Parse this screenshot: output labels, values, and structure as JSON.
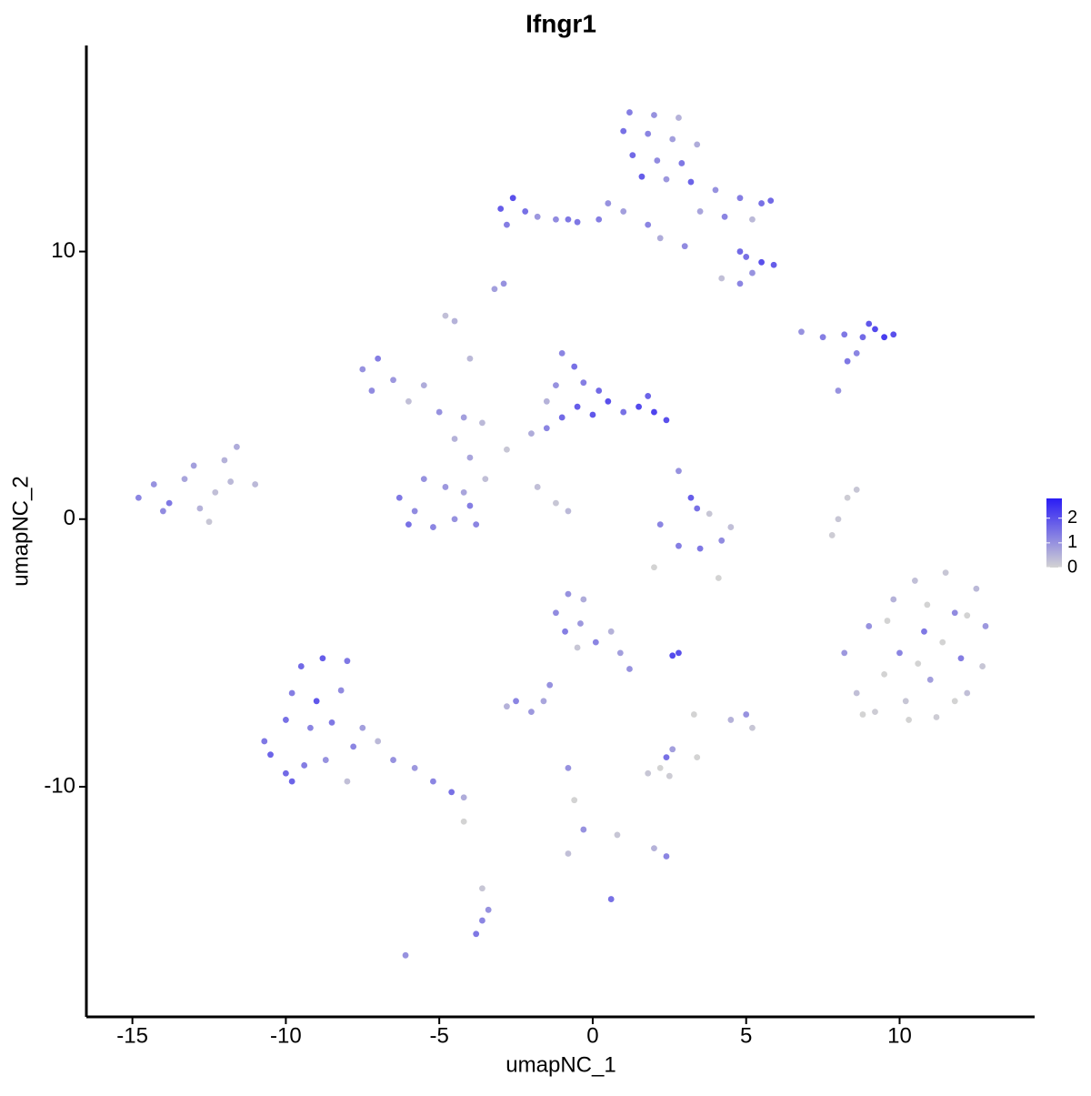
{
  "chart_data": {
    "type": "scatter",
    "title": "Ifngr1",
    "x_label": "umapNC_1",
    "y_label": "umapNC_2",
    "xlim": [
      -16.5,
      14.4
    ],
    "ylim": [
      -18.6,
      17.7
    ],
    "xticks": [
      -15,
      -10,
      -5,
      0,
      5,
      10
    ],
    "yticks": [
      -10,
      0,
      10
    ],
    "colorbar": {
      "lim": [
        0,
        2.8
      ],
      "ticks": [
        0,
        1,
        2
      ],
      "low": "#d3d3d3",
      "high": "#2a1cf5"
    },
    "x": [
      1.2,
      2.0,
      2.8,
      1.0,
      1.8,
      2.6,
      3.4,
      1.3,
      2.1,
      2.9,
      1.6,
      2.4,
      3.2,
      4.0,
      4.8,
      5.5,
      3.5,
      4.3,
      5.2,
      5.8,
      4.8,
      5.5,
      5.9,
      5.2,
      4.8,
      4.2,
      5.0,
      0.5,
      0.2,
      -0.5,
      1.0,
      1.8,
      2.2,
      3.0,
      -3.0,
      -2.6,
      -2.2,
      -2.8,
      -1.8,
      -1.2,
      -0.8,
      -3.2,
      -4.5,
      -2.9,
      6.8,
      7.5,
      8.2,
      8.8,
      9.2,
      9.5,
      9.8,
      9.0,
      8.6,
      8.3,
      8.0,
      -7.5,
      -7.0,
      -6.5,
      -7.2,
      -6.0,
      -5.5,
      -5.0,
      -4.2,
      -3.6,
      -4.5,
      -4.0,
      -3.5,
      -2.8,
      -2.0,
      -1.5,
      -1.0,
      -0.5,
      0.0,
      0.5,
      1.0,
      1.5,
      2.0,
      2.4,
      1.8,
      -1.0,
      -0.6,
      -0.3,
      -1.2,
      0.2,
      -6.3,
      -5.8,
      -5.2,
      -4.5,
      -4.0,
      -4.8,
      -5.5,
      -4.2,
      -6.0,
      -3.8,
      -1.8,
      -1.2,
      -0.8,
      -1.5,
      -4.8,
      -4.0,
      2.8,
      3.2,
      3.4,
      2.2,
      2.8,
      3.5,
      4.2,
      4.5,
      3.8,
      8.3,
      8.0,
      7.8,
      8.6,
      -14.8,
      -14.3,
      -13.8,
      -13.3,
      -12.8,
      -13.0,
      -12.3,
      -11.8,
      -14.0,
      -12.5,
      -11.6,
      -12.0,
      -11.0,
      8.2,
      8.6,
      9.0,
      9.2,
      9.8,
      10.0,
      10.2,
      10.5,
      10.8,
      11.0,
      11.2,
      11.5,
      11.8,
      12.0,
      12.2,
      12.5,
      12.8,
      12.7,
      9.5,
      10.6,
      11.4,
      12.2,
      9.6,
      10.9,
      8.8,
      10.3,
      11.8,
      -9.5,
      -8.8,
      -8.0,
      -9.8,
      -9.0,
      -8.2,
      -10.0,
      -9.2,
      -8.5,
      -10.5,
      -10.0,
      -9.4,
      -8.7,
      -7.8,
      -7.0,
      -6.5,
      -5.8,
      -5.2,
      -4.6,
      -4.2,
      -9.8,
      -10.7,
      -7.5,
      -8.0,
      -1.2,
      -0.8,
      -0.3,
      -0.9,
      -0.4,
      0.1,
      0.6,
      0.9,
      1.2,
      -0.5,
      -1.4,
      -1.6,
      -2.5,
      -2.0,
      -2.8,
      2.8,
      2.6,
      1.8,
      2.2,
      2.5,
      2.4,
      2.6,
      -0.8,
      -0.6,
      -0.3,
      0.8,
      2.0,
      2.4,
      4.5,
      5.0,
      5.2,
      3.3,
      3.4,
      -3.6,
      -3.4,
      -3.6,
      -3.8,
      -6.1,
      0.6,
      -0.8,
      -4.2,
      4.1,
      2.0
    ],
    "y": [
      15.2,
      15.1,
      15.0,
      14.5,
      14.4,
      14.2,
      14.0,
      13.6,
      13.4,
      13.3,
      12.8,
      12.7,
      12.6,
      12.3,
      12.0,
      11.8,
      11.5,
      11.3,
      11.2,
      11.9,
      10.0,
      9.6,
      9.5,
      9.2,
      8.8,
      9.0,
      9.8,
      11.8,
      11.2,
      11.1,
      11.5,
      11.0,
      10.5,
      10.2,
      11.6,
      12.0,
      11.5,
      11.0,
      11.3,
      11.2,
      11.2,
      8.6,
      7.4,
      8.8,
      7.0,
      6.8,
      6.9,
      6.8,
      7.1,
      6.8,
      6.9,
      7.3,
      6.2,
      5.9,
      4.8,
      5.6,
      6.0,
      5.2,
      4.8,
      4.4,
      5.0,
      4.0,
      3.8,
      3.6,
      3.0,
      2.3,
      1.5,
      2.6,
      3.2,
      3.4,
      3.8,
      4.2,
      3.9,
      4.4,
      4.0,
      4.2,
      4.0,
      3.7,
      4.6,
      6.2,
      5.7,
      5.1,
      5.0,
      4.8,
      0.8,
      0.3,
      -0.3,
      0.0,
      0.5,
      1.2,
      1.5,
      1.0,
      -0.2,
      -0.2,
      1.2,
      0.6,
      0.3,
      4.4,
      7.6,
      6.0,
      1.8,
      0.8,
      0.4,
      -0.2,
      -1.0,
      -1.1,
      -0.8,
      -0.3,
      0.2,
      0.8,
      0.0,
      -0.6,
      1.1,
      0.8,
      1.3,
      0.6,
      1.5,
      0.4,
      2.0,
      1.0,
      1.4,
      0.3,
      -0.1,
      2.7,
      2.2,
      1.3,
      -5.0,
      -6.5,
      -4.0,
      -7.2,
      -3.0,
      -5.0,
      -6.8,
      -2.3,
      -4.2,
      -6.0,
      -7.4,
      -2.0,
      -3.5,
      -5.2,
      -6.5,
      -2.6,
      -4.0,
      -5.5,
      -5.8,
      -5.4,
      -4.6,
      -3.6,
      -3.8,
      -3.2,
      -7.3,
      -7.5,
      -6.8,
      -5.5,
      -5.2,
      -5.3,
      -6.5,
      -6.8,
      -6.4,
      -7.5,
      -7.8,
      -7.6,
      -8.8,
      -9.5,
      -9.2,
      -9.0,
      -8.5,
      -8.3,
      -9.0,
      -9.3,
      -9.8,
      -10.2,
      -10.4,
      -9.8,
      -8.3,
      -7.8,
      -9.8,
      -3.5,
      -2.8,
      -3.0,
      -4.2,
      -3.9,
      -4.6,
      -4.2,
      -5.0,
      -5.6,
      -4.8,
      -6.2,
      -6.8,
      -6.8,
      -7.2,
      -7.0,
      -5.0,
      -5.1,
      -9.5,
      -9.3,
      -9.6,
      -8.9,
      -8.6,
      -9.3,
      -10.5,
      -11.6,
      -11.8,
      -12.3,
      -12.6,
      -7.5,
      -7.3,
      -7.8,
      -7.3,
      -8.9,
      -13.8,
      -14.6,
      -15.0,
      -15.5,
      -16.3,
      -14.2,
      -12.5,
      -11.3,
      -2.2,
      -1.8
    ],
    "values": [
      1.3,
      1.0,
      0.5,
      1.5,
      1.2,
      0.8,
      0.6,
      1.6,
      1.1,
      1.4,
      1.8,
      0.9,
      1.7,
      1.0,
      1.3,
      1.5,
      0.7,
      1.2,
      0.4,
      1.6,
      1.6,
      2.0,
      1.8,
      1.0,
      1.2,
      0.3,
      1.5,
      1.0,
      1.3,
      1.4,
      0.8,
      1.2,
      0.6,
      1.1,
      1.8,
      2.0,
      1.5,
      1.3,
      0.9,
      1.1,
      1.4,
      0.8,
      0.5,
      1.0,
      1.0,
      1.3,
      1.4,
      1.6,
      2.1,
      2.3,
      2.0,
      1.9,
      1.2,
      1.4,
      1.0,
      1.0,
      1.3,
      0.9,
      1.1,
      0.3,
      0.6,
      1.0,
      0.8,
      0.4,
      0.5,
      0.7,
      0.3,
      0.2,
      0.6,
      1.2,
      1.6,
      1.8,
      1.9,
      2.0,
      1.5,
      2.1,
      2.2,
      2.0,
      1.7,
      1.2,
      1.5,
      1.3,
      1.0,
      1.6,
      1.4,
      1.1,
      1.2,
      1.0,
      1.3,
      0.9,
      1.0,
      0.7,
      1.5,
      1.2,
      0.3,
      0.2,
      0.4,
      0.5,
      0.3,
      0.4,
      1.0,
      1.8,
      1.5,
      1.2,
      1.3,
      1.4,
      1.1,
      0.3,
      0.2,
      0.1,
      0.2,
      0.1,
      0.2,
      1.2,
      1.0,
      1.4,
      0.7,
      0.5,
      0.8,
      0.3,
      0.4,
      1.1,
      0.2,
      0.6,
      0.5,
      0.4,
      0.9,
      0.3,
      1.0,
      0.1,
      0.5,
      1.2,
      0.2,
      0.3,
      1.4,
      0.8,
      0.1,
      0.2,
      1.1,
      1.3,
      0.3,
      0.4,
      0.9,
      0.2,
      0.0,
      0.0,
      0.0,
      0.0,
      0.0,
      0.0,
      0.0,
      0.0,
      0.0,
      1.6,
      1.8,
      1.4,
      1.3,
      1.9,
      1.1,
      1.5,
      1.2,
      1.4,
      1.7,
      1.6,
      1.3,
      1.0,
      1.2,
      0.4,
      1.0,
      0.9,
      1.2,
      1.5,
      0.6,
      1.7,
      1.4,
      0.8,
      0.3,
      1.1,
      1.0,
      0.6,
      1.3,
      0.9,
      1.2,
      0.5,
      0.8,
      1.0,
      0.2,
      1.0,
      0.7,
      1.2,
      0.9,
      0.5,
      2.0,
      2.1,
      0.2,
      0.0,
      0.1,
      1.5,
      0.8,
      1.0,
      0.0,
      1.0,
      0.2,
      0.5,
      1.2,
      0.5,
      1.0,
      0.2,
      0.0,
      0.0,
      0.2,
      1.0,
      1.2,
      1.4,
      1.0,
      1.5,
      0.3,
      0.0,
      0.0,
      0.0
    ]
  }
}
